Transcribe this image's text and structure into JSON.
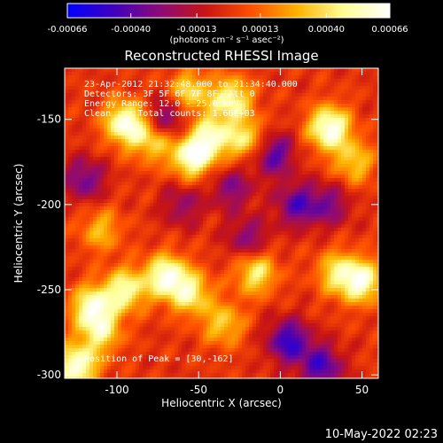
{
  "colorbar": {
    "tick_labels": [
      "-0.00066",
      "-0.00040",
      "-0.00013",
      "0.00013",
      "0.00040",
      "0.00066"
    ],
    "tick_values": [
      -0.00066,
      -0.0004,
      -0.00013,
      0.00013,
      0.0004,
      0.00066
    ],
    "range": [
      -0.00066,
      0.00066
    ],
    "unit_label": "(photons cm⁻² s⁻¹ asec⁻²)",
    "colormap": [
      "#0000ff",
      "#3f00bf",
      "#8c0a78",
      "#c81414",
      "#ff5000",
      "#ffb400",
      "#ffff96",
      "#ffffff"
    ]
  },
  "annotations": {
    "time_range": "23-Apr-2012 21:32:48.000 to 21:34:40.000",
    "detectors": "Detectors: 3F 5F 6F 7F 8F, Att 0",
    "energy_range": "Energy Range: 12.0 - 25.0 keV",
    "clean_counts": "Clean     Total counts: 1.66E+03",
    "peak_position": "Position of Peak = [30,-162]"
  },
  "footer": {
    "timestamp": "10-May-2022 02:23"
  },
  "chart_data": {
    "type": "heatmap",
    "title": "Reconstructed RHESSI Image",
    "xlabel": "Heliocentric X (arcsec)",
    "ylabel": "Heliocentric Y (arcsec)",
    "xlim": [
      -132,
      60
    ],
    "ylim": [
      -302,
      -120
    ],
    "xticks": [
      -100,
      -50,
      0,
      50
    ],
    "xtick_labels": [
      "-100",
      "-50",
      "0",
      "50"
    ],
    "yticks": [
      -300,
      -250,
      -200,
      -150
    ],
    "ytick_labels": [
      "-300",
      "-250",
      "-200",
      "-150"
    ],
    "grid": false,
    "peak": [
      30,
      -162
    ],
    "value_range": [
      -0.00066,
      0.00066
    ],
    "sources": [
      {
        "x": -95,
        "y": -152,
        "amp": 0.00062
      },
      {
        "x": -78,
        "y": -162,
        "amp": 0.0004
      },
      {
        "x": -54,
        "y": -172,
        "amp": 0.0006
      },
      {
        "x": -42,
        "y": -160,
        "amp": 0.00048
      },
      {
        "x": -56,
        "y": -134,
        "amp": 0.0004
      },
      {
        "x": -30,
        "y": -138,
        "amp": 0.0005
      },
      {
        "x": -20,
        "y": -162,
        "amp": 0.00042
      },
      {
        "x": 30,
        "y": -155,
        "amp": 0.00066
      },
      {
        "x": 45,
        "y": -175,
        "amp": 0.00035
      },
      {
        "x": -110,
        "y": -215,
        "amp": 0.0003
      },
      {
        "x": -95,
        "y": -250,
        "amp": 0.0005
      },
      {
        "x": -115,
        "y": -260,
        "amp": 0.00055
      },
      {
        "x": -70,
        "y": -242,
        "amp": 0.0006
      },
      {
        "x": -55,
        "y": -252,
        "amp": 0.00045
      },
      {
        "x": -35,
        "y": -270,
        "amp": 0.00035
      },
      {
        "x": -15,
        "y": -240,
        "amp": 0.00045
      },
      {
        "x": 35,
        "y": -240,
        "amp": 0.0004
      },
      {
        "x": 50,
        "y": -245,
        "amp": 0.00055
      },
      {
        "x": -125,
        "y": -295,
        "amp": 0.00062
      },
      {
        "x": -110,
        "y": -275,
        "amp": 0.0004
      },
      {
        "x": -70,
        "y": -150,
        "amp": -0.0004
      },
      {
        "x": -30,
        "y": -190,
        "amp": -0.0003
      },
      {
        "x": -5,
        "y": -170,
        "amp": -0.00045
      },
      {
        "x": 10,
        "y": -200,
        "amp": -0.0004
      },
      {
        "x": -120,
        "y": -185,
        "amp": -0.00035
      },
      {
        "x": -20,
        "y": -220,
        "amp": -0.0003
      },
      {
        "x": 5,
        "y": -280,
        "amp": -0.0005
      },
      {
        "x": 25,
        "y": -295,
        "amp": -0.00045
      },
      {
        "x": 30,
        "y": -200,
        "amp": -0.0003
      },
      {
        "x": -60,
        "y": -200,
        "amp": -0.00025
      }
    ]
  }
}
